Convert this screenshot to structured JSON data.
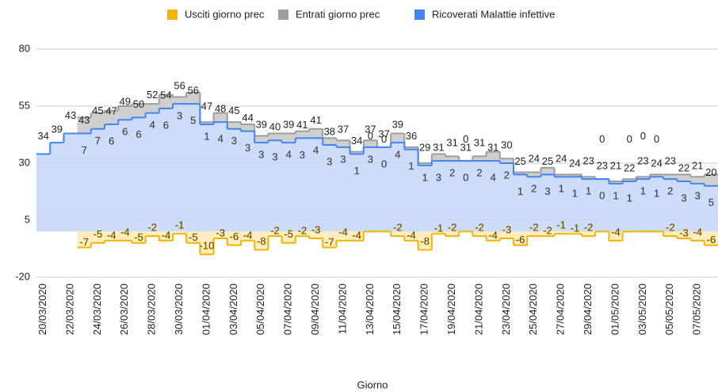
{
  "chart_data": {
    "type": "stepped-area",
    "x_label": "Giorno",
    "categories": [
      "20/03/2020",
      null,
      "22/03/2020",
      null,
      "24/03/2020",
      null,
      "26/03/2020",
      null,
      "28/03/2020",
      null,
      "30/03/2020",
      null,
      "01/04/2020",
      null,
      "03/04/2020",
      null,
      "05/04/2020",
      null,
      "07/04/2020",
      null,
      "09/04/2020",
      null,
      "11/04/2020",
      null,
      "13/04/2020",
      null,
      "15/04/2020",
      null,
      "17/04/2020",
      null,
      "19/04/2020",
      null,
      "21/04/2020",
      null,
      "23/04/2020",
      null,
      "25/04/2020",
      null,
      "27/04/2020",
      null,
      "29/04/2020",
      null,
      "01/05/2020",
      null,
      "03/05/2020",
      null,
      "05/05/2020",
      null,
      "07/05/2020",
      null
    ],
    "series": [
      {
        "name": "Usciti giorno prec",
        "color": "#f4b400",
        "values": [
          null,
          null,
          null,
          -7,
          -5,
          -4,
          -4,
          -5,
          -2,
          -4,
          -1,
          -5,
          -10,
          -3,
          -6,
          -4,
          -8,
          -2,
          -5,
          -2,
          -3,
          -7,
          -4,
          -4,
          0,
          0,
          -2,
          -4,
          -8,
          -1,
          -2,
          0,
          -2,
          -4,
          -3,
          -6,
          -2,
          -2,
          -1,
          -1,
          -2,
          0,
          -4,
          0,
          0,
          0,
          -2,
          -3,
          -4,
          -6
        ]
      },
      {
        "name": "Entrati giorno prec",
        "color": "#9e9e9e",
        "values": [
          null,
          null,
          null,
          7,
          7,
          6,
          6,
          6,
          4,
          6,
          3,
          5,
          1,
          4,
          3,
          3,
          3,
          3,
          4,
          3,
          4,
          3,
          3,
          1,
          3,
          0,
          4,
          1,
          1,
          3,
          2,
          0,
          2,
          4,
          2,
          1,
          2,
          3,
          1,
          1,
          1,
          0,
          1,
          1,
          1,
          1,
          2,
          3,
          3,
          5
        ]
      },
      {
        "name": "Ricoverati Malattie infettive",
        "color": "#4285f4",
        "values": [
          34,
          39,
          43,
          43,
          45,
          47,
          49,
          50,
          52,
          54,
          56,
          56,
          47,
          48,
          45,
          44,
          39,
          40,
          39,
          41,
          41,
          38,
          37,
          34,
          37,
          37,
          39,
          36,
          29,
          31,
          31,
          31,
          31,
          31,
          30,
          25,
          24,
          25,
          24,
          24,
          23,
          23,
          21,
          22,
          23,
          24,
          23,
          22,
          21,
          20
        ]
      }
    ],
    "ylim": [
      -20,
      80
    ],
    "yticks": [
      -20,
      5,
      30,
      55,
      80
    ],
    "grid": true,
    "legend": "top"
  }
}
